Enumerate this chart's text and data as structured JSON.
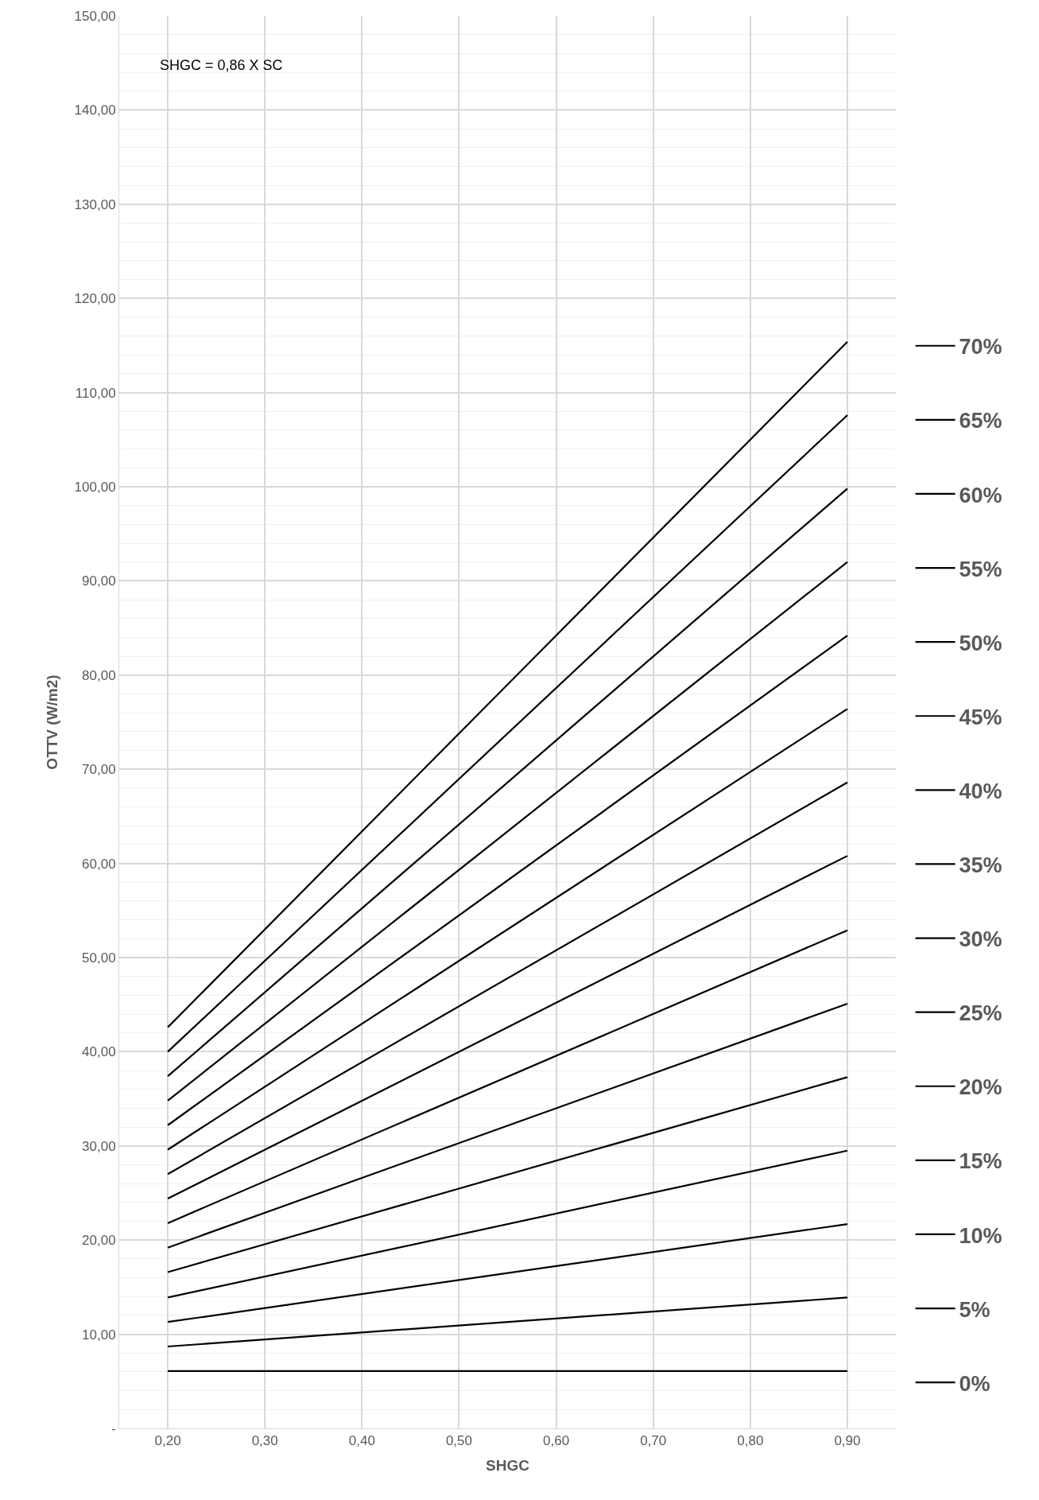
{
  "chart_data": {
    "type": "line",
    "xlabel": "SHGC",
    "ylabel": "OTTV (W/m2)",
    "annotations": [
      "SHGC = 0,86 X SC"
    ],
    "x": [
      0.2,
      0.9
    ],
    "xlim": [
      0.15,
      0.95
    ],
    "xticks": [
      {
        "value": 0.2,
        "label": "0,20"
      },
      {
        "value": 0.3,
        "label": "0,30"
      },
      {
        "value": 0.4,
        "label": "0,40"
      },
      {
        "value": 0.5,
        "label": "0,50"
      },
      {
        "value": 0.6,
        "label": "0,60"
      },
      {
        "value": 0.7,
        "label": "0,70"
      },
      {
        "value": 0.8,
        "label": "0,80"
      },
      {
        "value": 0.9,
        "label": "0,90"
      }
    ],
    "ylim": [
      0,
      150
    ],
    "yticks": [
      {
        "value": 0,
        "label": "-"
      },
      {
        "value": 10,
        "label": "10,00"
      },
      {
        "value": 20,
        "label": "20,00"
      },
      {
        "value": 30,
        "label": "30,00"
      },
      {
        "value": 40,
        "label": "40,00"
      },
      {
        "value": 50,
        "label": "50,00"
      },
      {
        "value": 60,
        "label": "60,00"
      },
      {
        "value": 70,
        "label": "70,00"
      },
      {
        "value": 80,
        "label": "80,00"
      },
      {
        "value": 90,
        "label": "90,00"
      },
      {
        "value": 100,
        "label": "100,00"
      },
      {
        "value": 110,
        "label": "110,00"
      },
      {
        "value": 120,
        "label": "120,00"
      },
      {
        "value": 130,
        "label": "130,00"
      },
      {
        "value": 140,
        "label": "140,00"
      },
      {
        "value": 150,
        "label": "150,00"
      }
    ],
    "grid": true,
    "legend": "right",
    "marker": "none",
    "line_style": "solid",
    "series": [
      {
        "name": "0%",
        "color": "#000000",
        "values": [
          6.1,
          6.1
        ]
      },
      {
        "name": "5%",
        "color": "#000000",
        "values": [
          8.7,
          13.9
        ]
      },
      {
        "name": "10%",
        "color": "#000000",
        "values": [
          11.3,
          21.7
        ]
      },
      {
        "name": "15%",
        "color": "#000000",
        "values": [
          13.9,
          29.5
        ]
      },
      {
        "name": "20%",
        "color": "#000000",
        "values": [
          16.6,
          37.3
        ]
      },
      {
        "name": "25%",
        "color": "#000000",
        "values": [
          19.2,
          45.1
        ]
      },
      {
        "name": "30%",
        "color": "#000000",
        "values": [
          21.8,
          52.9
        ]
      },
      {
        "name": "35%",
        "color": "#000000",
        "values": [
          24.4,
          60.8
        ]
      },
      {
        "name": "40%",
        "color": "#000000",
        "values": [
          27.0,
          68.6
        ]
      },
      {
        "name": "45%",
        "color": "#000000",
        "values": [
          29.6,
          76.4
        ]
      },
      {
        "name": "50%",
        "color": "#000000",
        "values": [
          32.2,
          84.2
        ]
      },
      {
        "name": "55%",
        "color": "#000000",
        "values": [
          34.8,
          92.0
        ]
      },
      {
        "name": "60%",
        "color": "#000000",
        "values": [
          37.4,
          99.8
        ]
      },
      {
        "name": "65%",
        "color": "#000000",
        "values": [
          40.0,
          107.6
        ]
      },
      {
        "name": "70%",
        "color": "#000000",
        "values": [
          42.6,
          115.4
        ]
      }
    ]
  }
}
